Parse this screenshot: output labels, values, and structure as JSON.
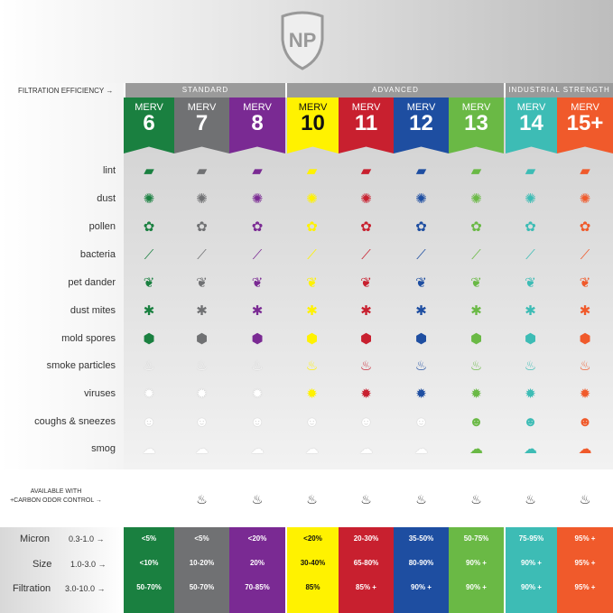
{
  "logo_text": "NP",
  "filtration_efficiency_label": "FILTRATION EFFICIENCY →",
  "groups": [
    {
      "label": "STANDARD"
    },
    {
      "label": "ADVANCED"
    },
    {
      "label": "INDUSTRIAL STRENGTH"
    }
  ],
  "columns": [
    {
      "merv": "MERV",
      "num": "6",
      "color": "#1a8040",
      "text": "#fff"
    },
    {
      "merv": "MERV",
      "num": "7",
      "color": "#707173",
      "text": "#fff"
    },
    {
      "merv": "MERV",
      "num": "8",
      "color": "#7a2a93",
      "text": "#fff"
    },
    {
      "merv": "MERV",
      "num": "10",
      "color": "#fff200",
      "text": "#111"
    },
    {
      "merv": "MERV",
      "num": "11",
      "color": "#c8202f",
      "text": "#fff"
    },
    {
      "merv": "MERV",
      "num": "12",
      "color": "#1e4ea1",
      "text": "#fff"
    },
    {
      "merv": "MERV",
      "num": "13",
      "color": "#6ab945",
      "text": "#fff"
    },
    {
      "merv": "MERV",
      "num": "14",
      "color": "#3dbcb5",
      "text": "#fff"
    },
    {
      "merv": "MERV",
      "num": "15+",
      "color": "#f05a2b",
      "text": "#fff"
    }
  ],
  "particles": [
    {
      "label": "lint",
      "icon": "lint-icon",
      "glyph": "▰",
      "active": [
        1,
        1,
        1,
        1,
        1,
        1,
        1,
        1,
        1
      ]
    },
    {
      "label": "dust",
      "icon": "duster-icon",
      "glyph": "✺",
      "active": [
        1,
        1,
        1,
        1,
        1,
        1,
        1,
        1,
        1
      ]
    },
    {
      "label": "pollen",
      "icon": "flower-icon",
      "glyph": "✿",
      "active": [
        1,
        1,
        1,
        1,
        1,
        1,
        1,
        1,
        1
      ]
    },
    {
      "label": "bacteria",
      "icon": "bacteria-icon",
      "glyph": "⟋",
      "active": [
        1,
        1,
        1,
        1,
        1,
        1,
        1,
        1,
        1
      ]
    },
    {
      "label": "pet dander",
      "icon": "paw-icon",
      "glyph": "❦",
      "active": [
        1,
        1,
        1,
        1,
        1,
        1,
        1,
        1,
        1
      ]
    },
    {
      "label": "dust mites",
      "icon": "mite-icon",
      "glyph": "✱",
      "active": [
        1,
        1,
        1,
        1,
        1,
        1,
        1,
        1,
        1
      ]
    },
    {
      "label": "mold spores",
      "icon": "spore-icon",
      "glyph": "⬢",
      "active": [
        1,
        1,
        1,
        1,
        1,
        1,
        1,
        1,
        1
      ]
    },
    {
      "label": "smoke particles",
      "icon": "pipe-icon",
      "glyph": "♨",
      "active": [
        0,
        0,
        0,
        1,
        1,
        1,
        1,
        1,
        1
      ]
    },
    {
      "label": "viruses",
      "icon": "virus-icon",
      "glyph": "✹",
      "active": [
        0,
        0,
        0,
        1,
        1,
        1,
        1,
        1,
        1
      ]
    },
    {
      "label": "coughs & sneezes",
      "icon": "sneeze-icon",
      "glyph": "☻",
      "active": [
        0,
        0,
        0,
        0,
        0,
        0,
        1,
        1,
        1
      ]
    },
    {
      "label": "smog",
      "icon": "cloud-icon",
      "glyph": "☁",
      "active": [
        0,
        0,
        0,
        0,
        0,
        0,
        1,
        1,
        1
      ]
    }
  ],
  "carbon": {
    "line1": "AVAILABLE WITH",
    "line2": "+CARBON ODOR CONTROL →",
    "available": [
      0,
      1,
      1,
      1,
      1,
      1,
      1,
      1,
      1
    ]
  },
  "table": {
    "labels": [
      "Micron",
      "Size",
      "Filtration"
    ],
    "ranges": [
      "0.3-1.0 →",
      "1.0-3.0 →",
      "3.0-10.0 →"
    ],
    "values": [
      [
        "<5%",
        "<10%",
        "50-70%"
      ],
      [
        "<5%",
        "10-20%",
        "50-70%"
      ],
      [
        "<20%",
        "20%",
        "70-85%"
      ],
      [
        "<20%",
        "30-40%",
        "85%"
      ],
      [
        "20-30%",
        "65-80%",
        "85% +"
      ],
      [
        "35-50%",
        "80-90%",
        "90% +"
      ],
      [
        "50-75%",
        "90% +",
        "90% +"
      ],
      [
        "75-95%",
        "90% +",
        "90% +"
      ],
      [
        "95% +",
        "95% +",
        "95% +"
      ]
    ]
  }
}
